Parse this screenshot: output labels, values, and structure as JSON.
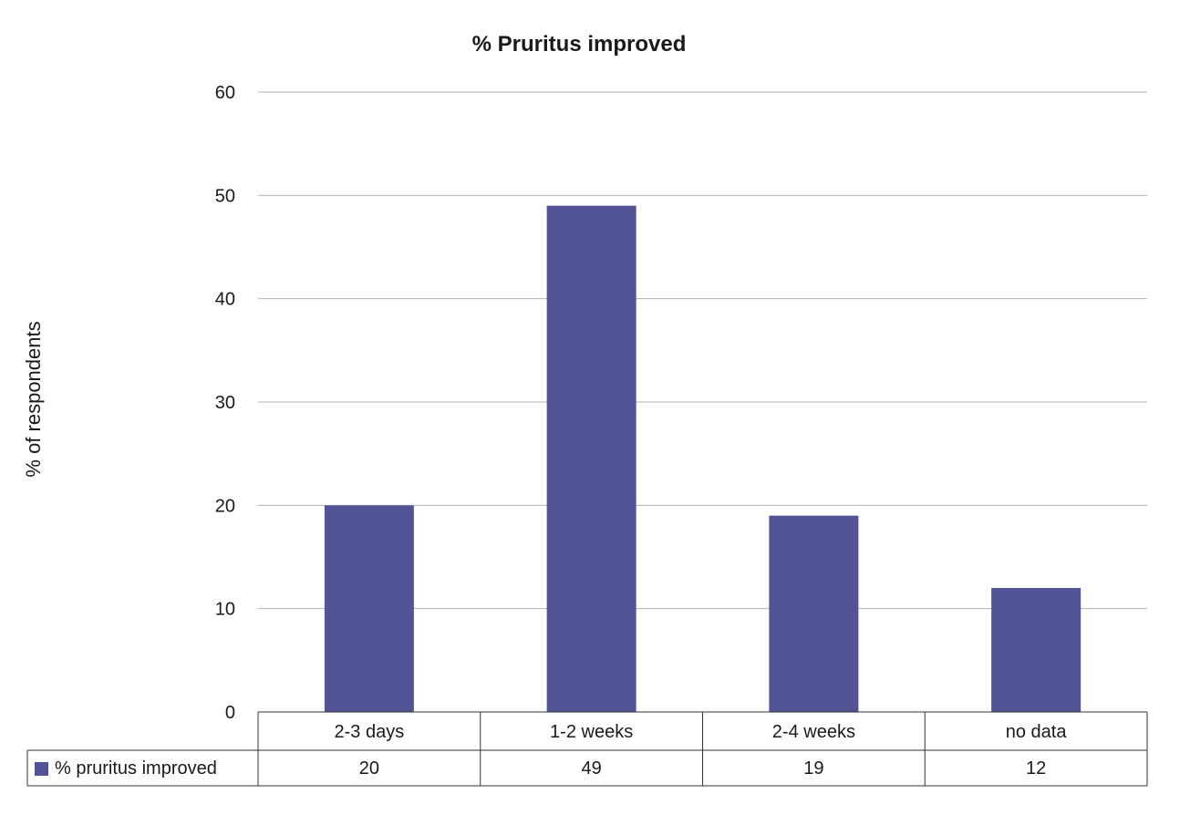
{
  "chart_data": {
    "type": "bar",
    "title": "% Pruritus improved",
    "xlabel": "",
    "ylabel": "% of respondents",
    "categories": [
      "2-3 days",
      "1-2 weeks",
      "2-4 weeks",
      "no data"
    ],
    "series": [
      {
        "name": "% pruritus improved",
        "values": [
          20,
          49,
          19,
          12
        ],
        "color": "#515394"
      }
    ],
    "ylim": [
      0,
      60
    ],
    "yticks": [
      0,
      10,
      20,
      30,
      40,
      50,
      60
    ],
    "grid": true,
    "data_table": true,
    "gridline_color": "#b3b3b3",
    "table_border_color": "#333333"
  }
}
